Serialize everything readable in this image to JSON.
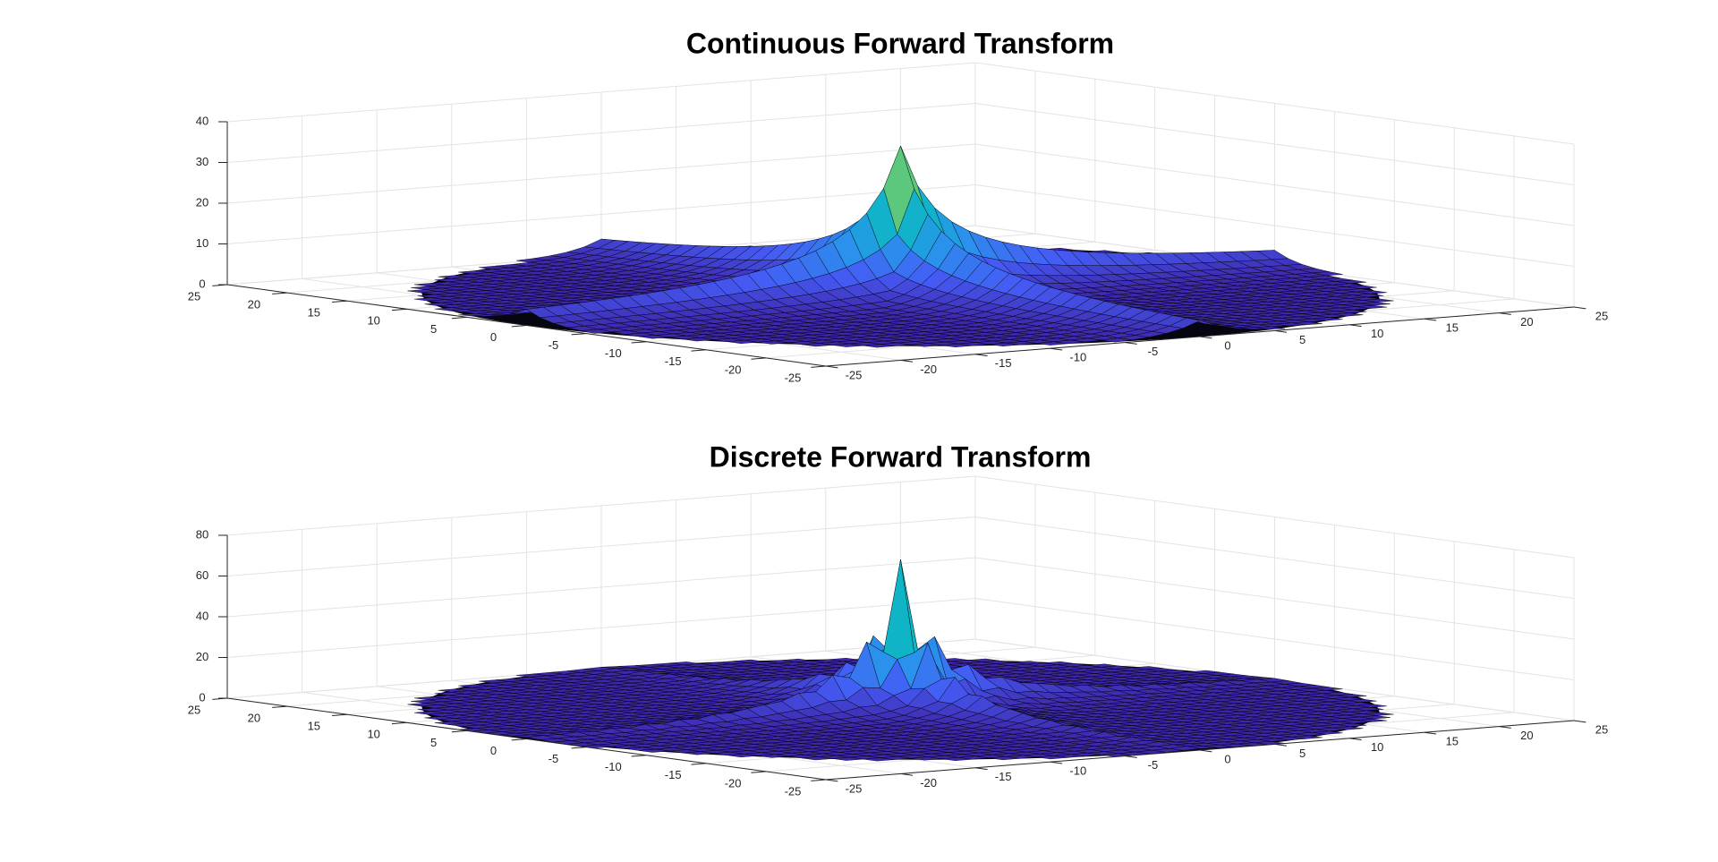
{
  "chart_data": [
    {
      "type": "surface",
      "title": "Continuous Forward Transform",
      "xlim": [
        -25,
        25
      ],
      "xticks": [
        -25,
        -20,
        -15,
        -10,
        -5,
        0,
        5,
        10,
        15,
        20,
        25
      ],
      "ylim": [
        -25,
        25
      ],
      "yticks": [
        -25,
        -20,
        -15,
        -10,
        -5,
        0,
        5,
        10,
        15,
        20,
        25
      ],
      "zlim": [
        0,
        40
      ],
      "zticks": [
        0,
        10,
        20,
        30,
        40
      ],
      "grid": true,
      "colormap": "parula"
    },
    {
      "type": "surface",
      "title": "Discrete Forward Transform",
      "xlim": [
        -25,
        25
      ],
      "xticks": [
        -25,
        -20,
        -15,
        -10,
        -5,
        0,
        5,
        10,
        15,
        20,
        25
      ],
      "ylim": [
        -25,
        25
      ],
      "yticks": [
        -25,
        -20,
        -15,
        -10,
        -5,
        0,
        5,
        10,
        15,
        20,
        25
      ],
      "zlim": [
        0,
        80
      ],
      "zticks": [
        0,
        20,
        40,
        60,
        80
      ],
      "grid": true,
      "colormap": "parula"
    }
  ]
}
